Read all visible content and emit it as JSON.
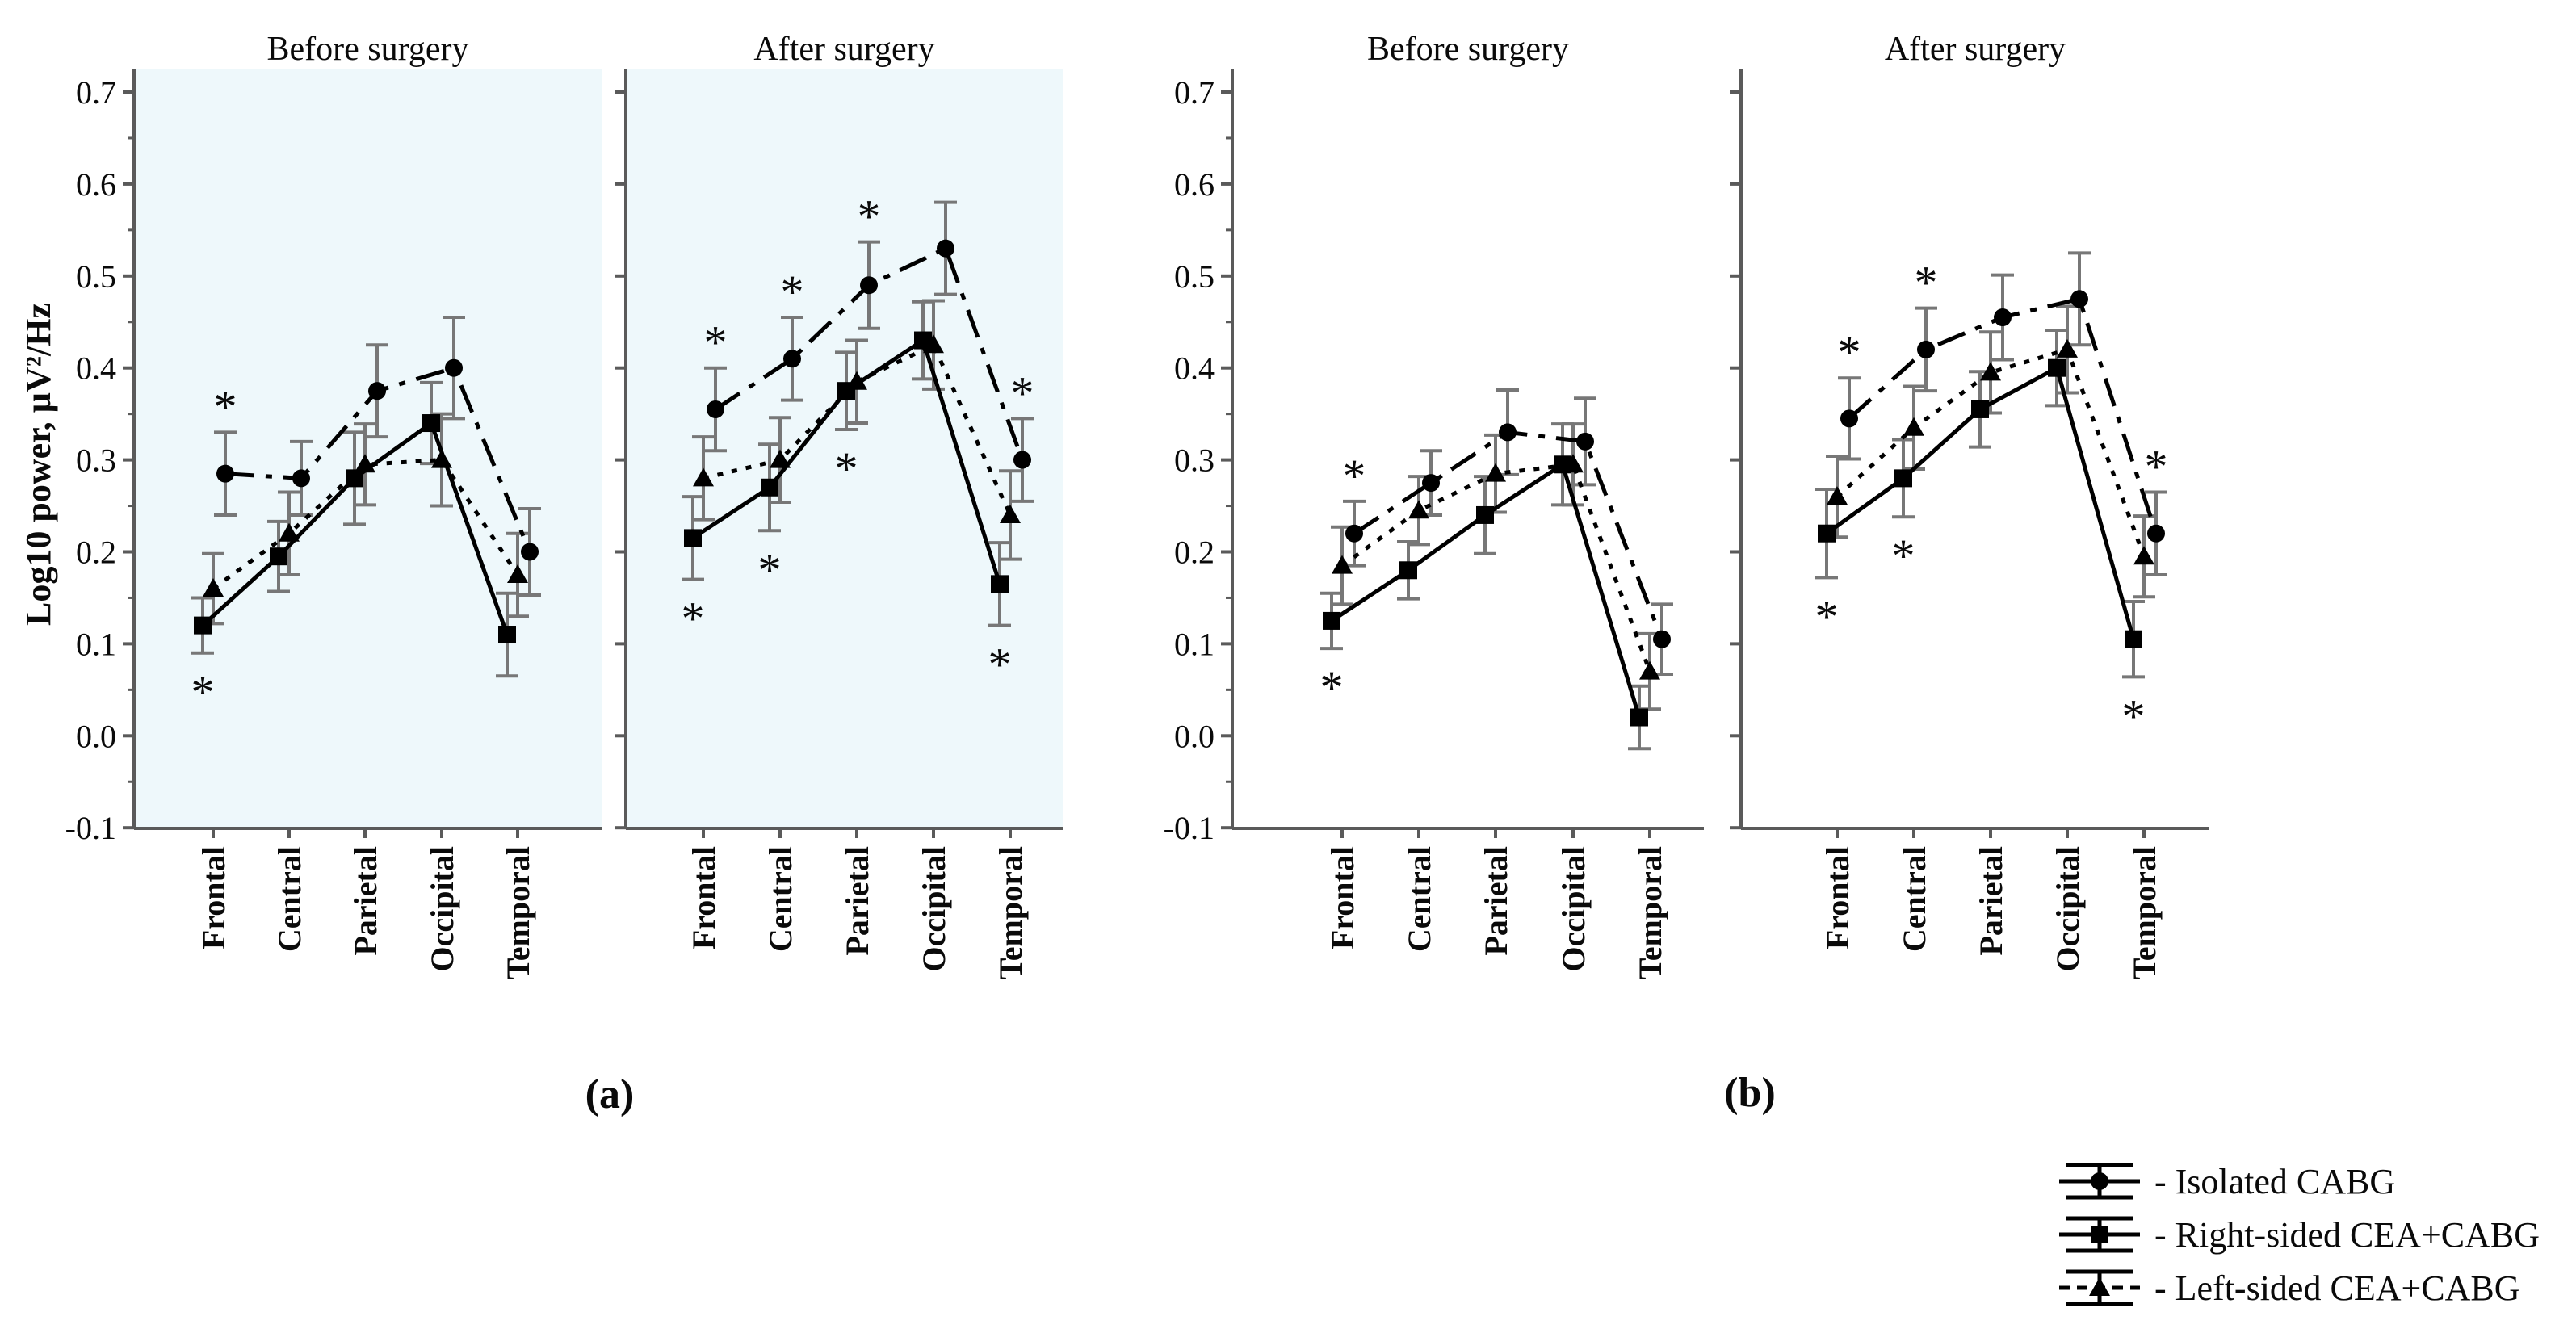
{
  "chart_data": {
    "type": "line",
    "title": "",
    "ylabel": "Log10 power, µV²/Hz",
    "xlabel": "",
    "ylim": [
      -0.1,
      0.7
    ],
    "grid": false,
    "legend_position": "bottom-right",
    "categories": [
      "Frontal",
      "Central",
      "Parietal",
      "Occipital",
      "Temporal"
    ],
    "yticks": [
      0.7,
      0.6,
      0.5,
      0.4,
      0.3,
      0.2,
      0.1,
      0.0,
      -0.1
    ],
    "ytick_labels": [
      "0.7",
      "0.6",
      "0.5",
      "0.4",
      "0.3",
      "0.2",
      "0.1",
      "0.0",
      "-0.1"
    ],
    "colors": {
      "panel_a_background": "#eef8fb",
      "panel_b_background": "#ffffff",
      "axis": "#5a5a5a",
      "error_bar": "#777777",
      "series": "#000000"
    },
    "series_meta": [
      {
        "id": "isolated",
        "name": "Isolated CABG",
        "legend_label": "- Isolated CABG",
        "marker": "circle",
        "line": "dashdot",
        "legend_line": "solid"
      },
      {
        "id": "right_cea",
        "name": "Right-sided CEA+CABG",
        "legend_label": "- Right-sided CEA+CABG",
        "marker": "square",
        "line": "solid",
        "legend_line": "solid"
      },
      {
        "id": "left_cea",
        "name": "Left-sided CEA+CABG",
        "legend_label": "- Left-sided CEA+CABG",
        "marker": "triangle",
        "line": "dotted",
        "legend_line": "dashed"
      }
    ],
    "significance_symbol": "*",
    "panels": [
      {
        "caption": "(a)",
        "background": "#eef8fb",
        "subplots": [
          {
            "title": "Before surgery",
            "series": [
              {
                "series": "isolated",
                "values": [
                  0.285,
                  0.28,
                  0.375,
                  0.4,
                  0.2
                ],
                "errors": [
                  0.045,
                  0.04,
                  0.05,
                  0.055,
                  0.047
                ],
                "sig_above": [
                  0
                ],
                "sig_below": []
              },
              {
                "series": "right_cea",
                "values": [
                  0.12,
                  0.195,
                  0.28,
                  0.34,
                  0.11
                ],
                "errors": [
                  0.03,
                  0.038,
                  0.05,
                  0.044,
                  0.045
                ],
                "sig_above": [],
                "sig_below": [
                  0
                ]
              },
              {
                "series": "left_cea",
                "values": [
                  0.16,
                  0.22,
                  0.295,
                  0.3,
                  0.175
                ],
                "errors": [
                  0.038,
                  0.045,
                  0.044,
                  0.05,
                  0.045
                ],
                "sig_above": [],
                "sig_below": []
              }
            ]
          },
          {
            "title": "After surgery",
            "series": [
              {
                "series": "isolated",
                "values": [
                  0.355,
                  0.41,
                  0.49,
                  0.53,
                  0.3
                ],
                "errors": [
                  0.045,
                  0.045,
                  0.047,
                  0.05,
                  0.045
                ],
                "sig_above": [
                  0,
                  1,
                  2,
                  4
                ],
                "sig_below": []
              },
              {
                "series": "right_cea",
                "values": [
                  0.215,
                  0.27,
                  0.375,
                  0.43,
                  0.165
                ],
                "errors": [
                  0.045,
                  0.047,
                  0.042,
                  0.042,
                  0.045
                ],
                "sig_above": [],
                "sig_below": [
                  0,
                  1,
                  2,
                  4
                ]
              },
              {
                "series": "left_cea",
                "values": [
                  0.28,
                  0.3,
                  0.385,
                  0.425,
                  0.24
                ],
                "errors": [
                  0.045,
                  0.046,
                  0.045,
                  0.048,
                  0.048
                ],
                "sig_above": [],
                "sig_below": []
              }
            ]
          }
        ]
      },
      {
        "caption": "(b)",
        "background": "#ffffff",
        "subplots": [
          {
            "title": "Before surgery",
            "series": [
              {
                "series": "isolated",
                "values": [
                  0.22,
                  0.275,
                  0.33,
                  0.32,
                  0.105
                ],
                "errors": [
                  0.035,
                  0.035,
                  0.046,
                  0.047,
                  0.038
                ],
                "sig_above": [
                  0
                ],
                "sig_below": []
              },
              {
                "series": "right_cea",
                "values": [
                  0.125,
                  0.18,
                  0.24,
                  0.295,
                  0.02
                ],
                "errors": [
                  0.03,
                  0.031,
                  0.042,
                  0.044,
                  0.034
                ],
                "sig_above": [],
                "sig_below": [
                  0
                ]
              },
              {
                "series": "left_cea",
                "values": [
                  0.185,
                  0.245,
                  0.285,
                  0.295,
                  0.07
                ],
                "errors": [
                  0.042,
                  0.037,
                  0.042,
                  0.044,
                  0.041
                ],
                "sig_above": [],
                "sig_below": []
              }
            ]
          },
          {
            "title": "After surgery",
            "series": [
              {
                "series": "isolated",
                "values": [
                  0.345,
                  0.42,
                  0.455,
                  0.475,
                  0.22
                ],
                "errors": [
                  0.044,
                  0.045,
                  0.046,
                  0.05,
                  0.045
                ],
                "sig_above": [
                  0,
                  1,
                  4
                ],
                "sig_below": []
              },
              {
                "series": "right_cea",
                "values": [
                  0.22,
                  0.28,
                  0.355,
                  0.4,
                  0.105
                ],
                "errors": [
                  0.048,
                  0.042,
                  0.041,
                  0.041,
                  0.041
                ],
                "sig_above": [],
                "sig_below": [
                  0,
                  1,
                  4
                ]
              },
              {
                "series": "left_cea",
                "values": [
                  0.26,
                  0.335,
                  0.395,
                  0.42,
                  0.195
                ],
                "errors": [
                  0.044,
                  0.045,
                  0.044,
                  0.047,
                  0.044
                ],
                "sig_above": [],
                "sig_below": []
              }
            ]
          }
        ]
      }
    ]
  }
}
